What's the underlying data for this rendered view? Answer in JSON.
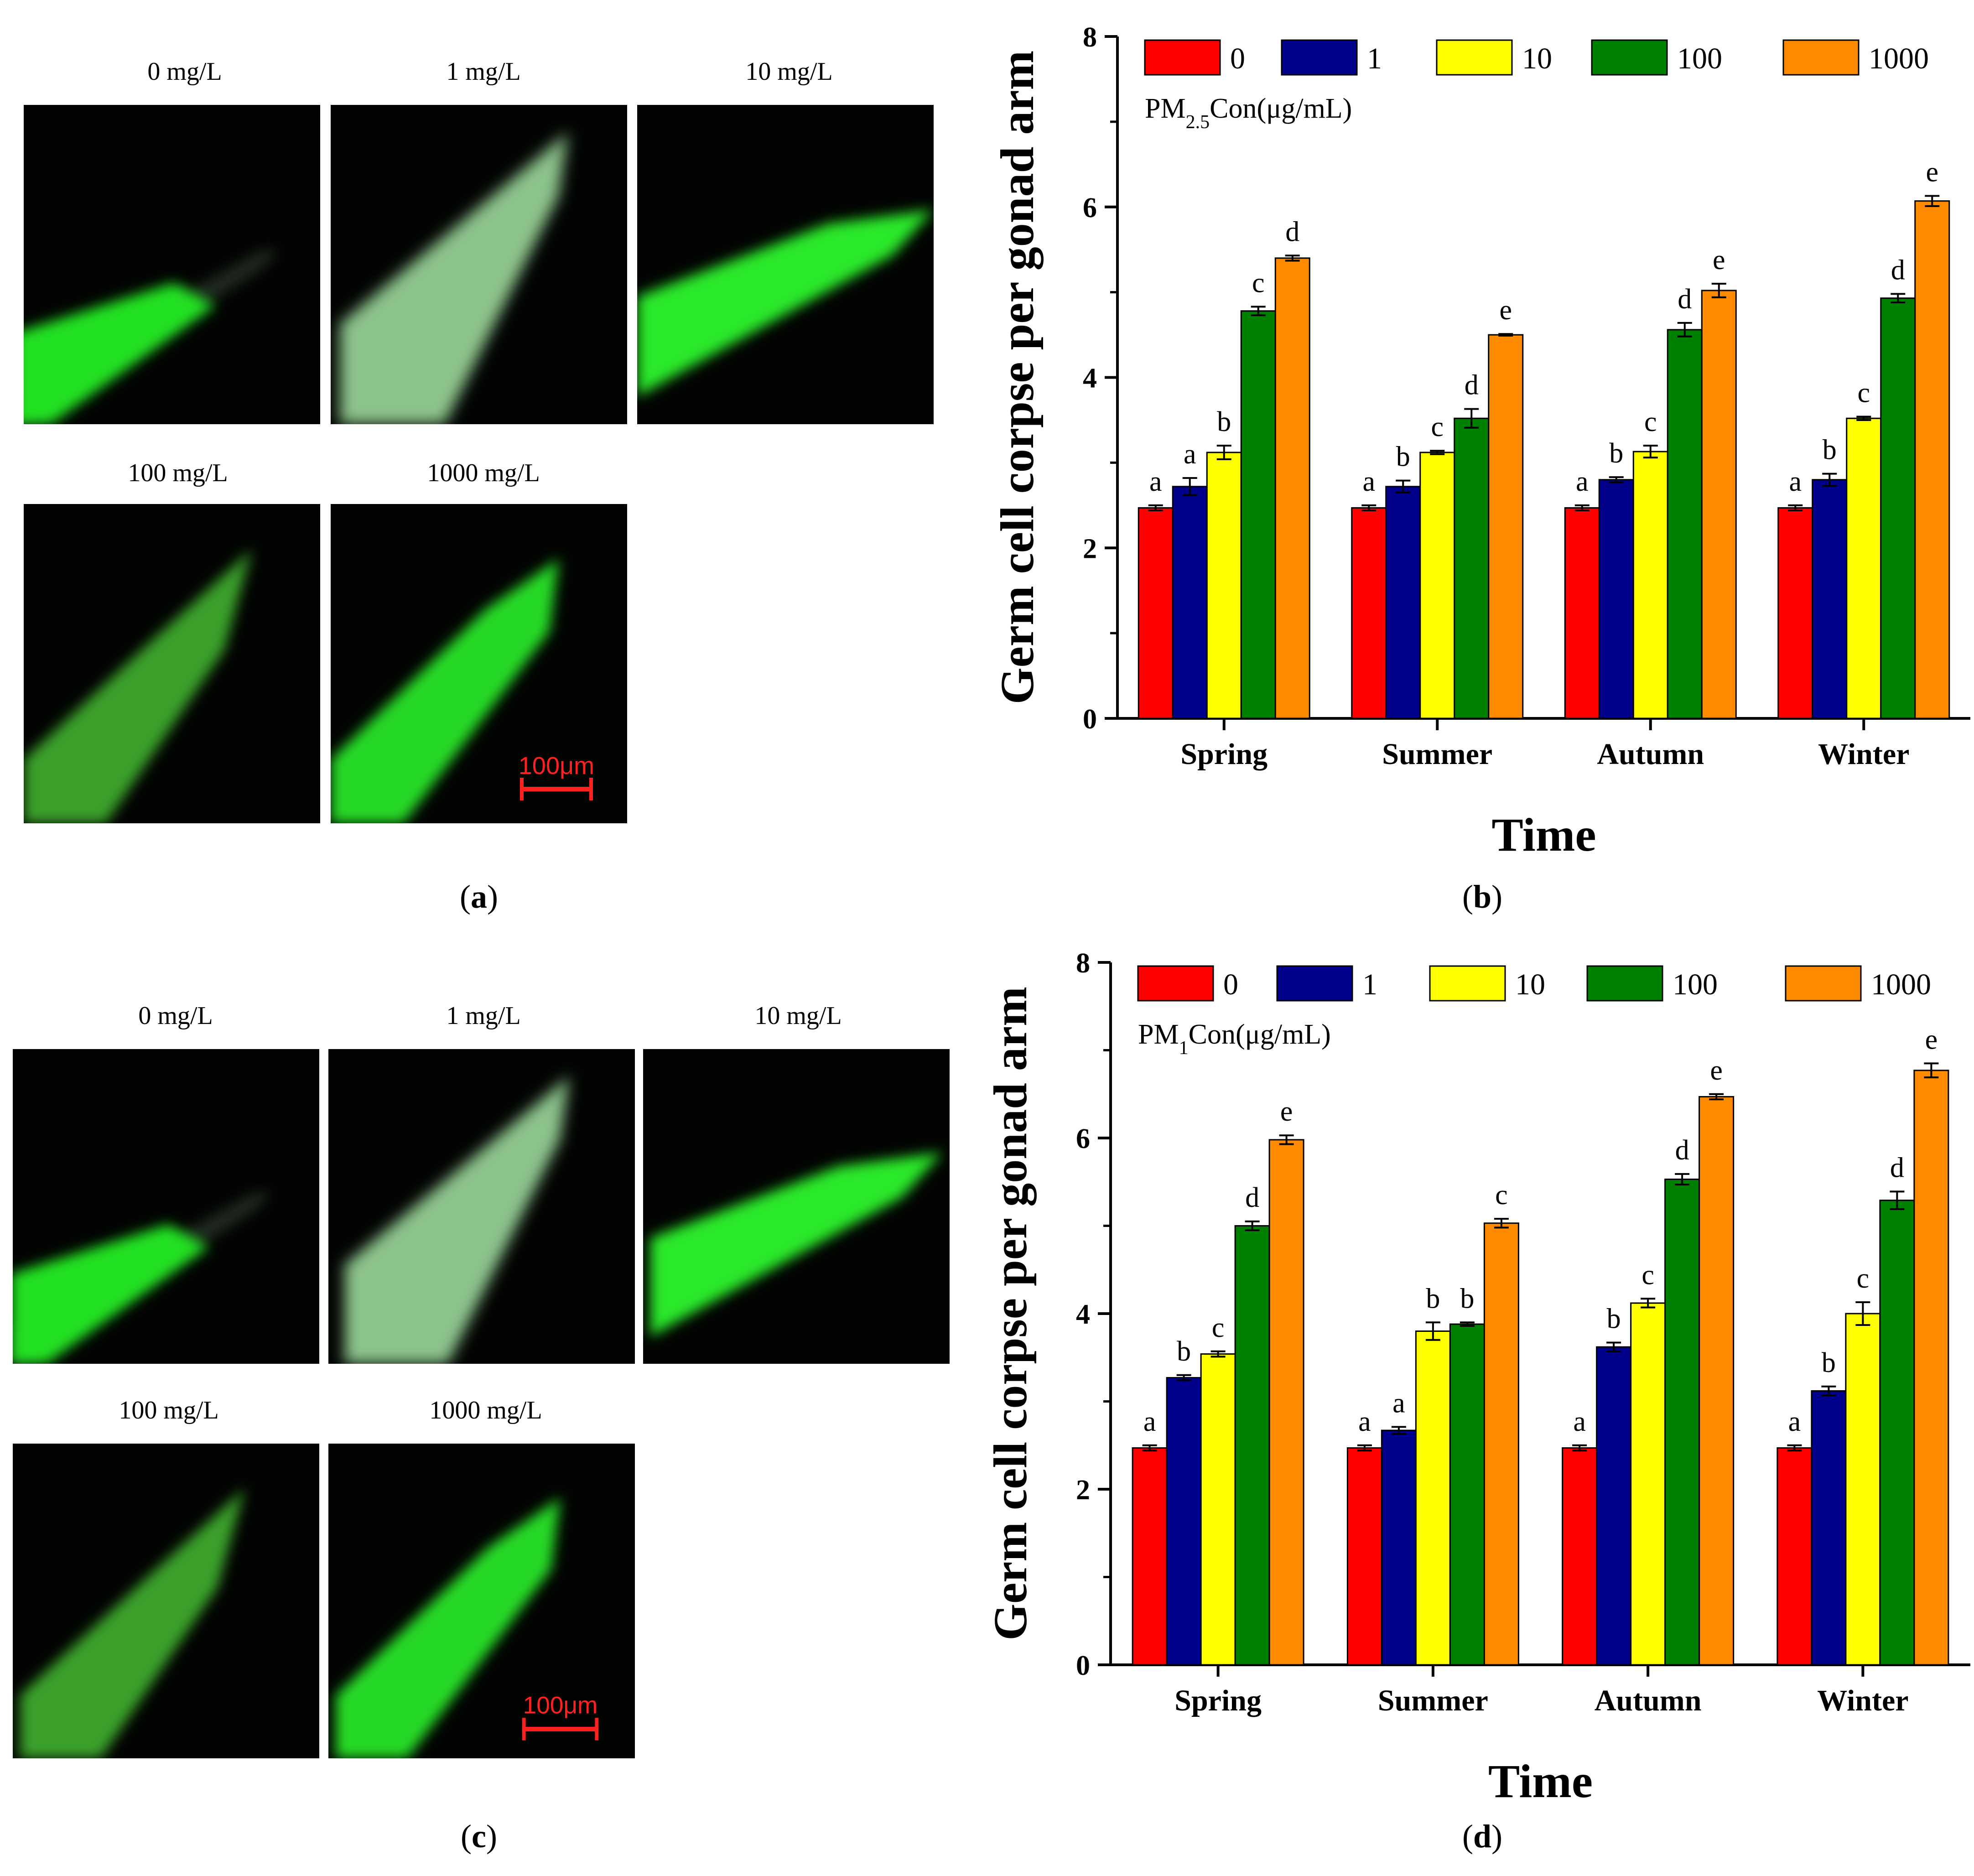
{
  "figure_labels": [
    "a",
    "b",
    "c",
    "d"
  ],
  "micrographs": {
    "labels": [
      "0 mg/L",
      "1 mg/L",
      "10 mg/L",
      "100 mg/L",
      "1000 mg/L"
    ],
    "scale_bar": "100μm"
  },
  "chart_data": [
    {
      "type": "bar",
      "title": "",
      "categories": [
        "Spring",
        "Summer",
        "Autumn",
        "Winter"
      ],
      "xlabel": "Time",
      "ylabel": "Germ cell corpse per gonad arm",
      "ylim": [
        0,
        8
      ],
      "yticks": [
        0,
        2,
        4,
        6,
        8
      ],
      "legend_title_main": "PM",
      "legend_title_sub": "2.5",
      "legend_title_rest": "Con(μg/mL)",
      "legend_position": "top-left",
      "series": [
        {
          "name": "0",
          "color": "#ff0000",
          "values": [
            2.47,
            2.47,
            2.47,
            2.47
          ],
          "errors": [
            0.03,
            0.03,
            0.03,
            0.03
          ],
          "letters": [
            "a",
            "a",
            "a",
            "a"
          ]
        },
        {
          "name": "1",
          "color": "#00008b",
          "values": [
            2.72,
            2.72,
            2.8,
            2.8
          ],
          "errors": [
            0.1,
            0.07,
            0.03,
            0.07
          ],
          "letters": [
            "a",
            "b",
            "b",
            "b"
          ]
        },
        {
          "name": "10",
          "color": "#ffff00",
          "values": [
            3.12,
            3.12,
            3.13,
            3.52
          ],
          "errors": [
            0.08,
            0.02,
            0.07,
            0.02
          ],
          "letters": [
            "b",
            "c",
            "c",
            "c"
          ]
        },
        {
          "name": "100",
          "color": "#008000",
          "values": [
            4.78,
            3.52,
            4.56,
            4.93
          ],
          "errors": [
            0.05,
            0.11,
            0.08,
            0.05
          ],
          "letters": [
            "c",
            "d",
            "d",
            "d"
          ]
        },
        {
          "name": "1000",
          "color": "#ff8c00",
          "values": [
            5.4,
            4.5,
            5.02,
            6.07
          ],
          "errors": [
            0.03,
            0.01,
            0.08,
            0.06
          ],
          "letters": [
            "d",
            "e",
            "e",
            "e"
          ]
        }
      ]
    },
    {
      "type": "bar",
      "title": "",
      "categories": [
        "Spring",
        "Summer",
        "Autumn",
        "Winter"
      ],
      "xlabel": "Time",
      "ylabel": "Germ cell corpse per gonad arm",
      "ylim": [
        0,
        8
      ],
      "yticks": [
        0,
        2,
        4,
        6,
        8
      ],
      "legend_title_main": "PM",
      "legend_title_sub": "1",
      "legend_title_rest": "Con(μg/mL)",
      "legend_position": "top-left",
      "series": [
        {
          "name": "0",
          "color": "#ff0000",
          "values": [
            2.47,
            2.47,
            2.47,
            2.47
          ],
          "errors": [
            0.03,
            0.03,
            0.03,
            0.03
          ],
          "letters": [
            "a",
            "a",
            "a",
            "a"
          ]
        },
        {
          "name": "1",
          "color": "#00008b",
          "values": [
            3.27,
            2.67,
            3.62,
            3.12
          ],
          "errors": [
            0.03,
            0.04,
            0.05,
            0.05
          ],
          "letters": [
            "b",
            "a",
            "b",
            "b"
          ]
        },
        {
          "name": "10",
          "color": "#ffff00",
          "values": [
            3.54,
            3.8,
            4.12,
            4.0
          ],
          "errors": [
            0.03,
            0.1,
            0.05,
            0.13
          ],
          "letters": [
            "c",
            "b",
            "c",
            "c"
          ]
        },
        {
          "name": "100",
          "color": "#008000",
          "values": [
            5.0,
            3.88,
            5.53,
            5.29
          ],
          "errors": [
            0.05,
            0.02,
            0.06,
            0.1
          ],
          "letters": [
            "d",
            "b",
            "d",
            "d"
          ]
        },
        {
          "name": "1000",
          "color": "#ff8c00",
          "values": [
            5.98,
            5.03,
            6.47,
            6.77
          ],
          "errors": [
            0.05,
            0.05,
            0.03,
            0.08
          ],
          "letters": [
            "e",
            "c",
            "e",
            "e"
          ]
        }
      ]
    }
  ]
}
